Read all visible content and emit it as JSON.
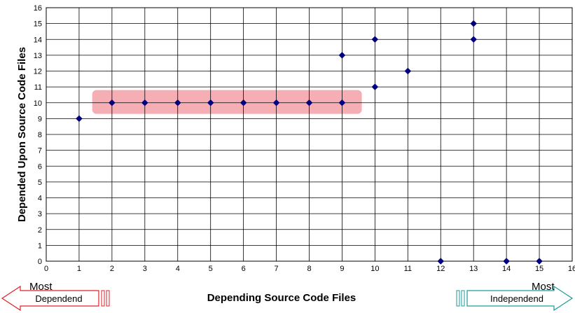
{
  "chart_data": {
    "type": "scatter",
    "title": "",
    "xlabel": "Depending Source Code Files",
    "ylabel": "Depended Upon Source Code Files",
    "xlim": [
      0,
      16
    ],
    "ylim": [
      0,
      16
    ],
    "x_ticks": [
      0,
      1,
      2,
      3,
      4,
      5,
      6,
      7,
      8,
      9,
      10,
      11,
      12,
      13,
      14,
      15,
      16
    ],
    "y_ticks": [
      0,
      1,
      2,
      3,
      4,
      5,
      6,
      7,
      8,
      9,
      10,
      11,
      12,
      13,
      14,
      15,
      16
    ],
    "grid": true,
    "marker_color": "#000080",
    "series": [
      {
        "points": [
          {
            "x": 1,
            "y": 9
          },
          {
            "x": 2,
            "y": 10
          },
          {
            "x": 3,
            "y": 10
          },
          {
            "x": 4,
            "y": 10
          },
          {
            "x": 5,
            "y": 10
          },
          {
            "x": 6,
            "y": 10
          },
          {
            "x": 7,
            "y": 10
          },
          {
            "x": 8,
            "y": 10
          },
          {
            "x": 9,
            "y": 10
          },
          {
            "x": 9,
            "y": 13
          },
          {
            "x": 10,
            "y": 11
          },
          {
            "x": 10,
            "y": 14
          },
          {
            "x": 11,
            "y": 12
          },
          {
            "x": 12,
            "y": 0
          },
          {
            "x": 13,
            "y": 14
          },
          {
            "x": 13,
            "y": 15
          },
          {
            "x": 14,
            "y": 0
          },
          {
            "x": 15,
            "y": 0
          }
        ]
      }
    ],
    "highlight_region": {
      "x": [
        1.4,
        9.6
      ],
      "y": [
        9.3,
        10.8
      ],
      "color": "#f4a0a8"
    },
    "annotations": {
      "left": {
        "top_text": "Most",
        "arrow_text": "Dependend",
        "color": "#e0202a"
      },
      "right": {
        "top_text": "Most",
        "arrow_text": "Independend",
        "color": "#1f9a9a"
      }
    }
  }
}
